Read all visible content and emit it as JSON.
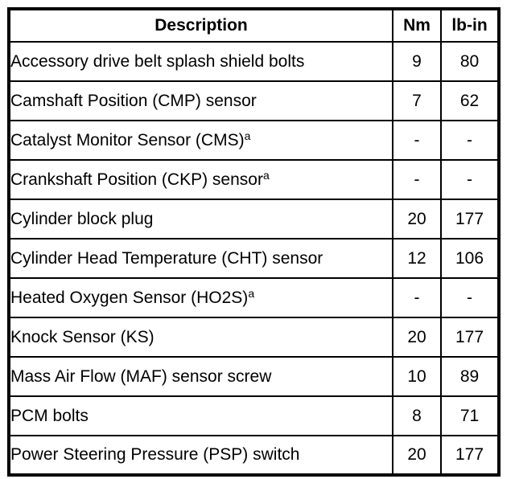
{
  "table": {
    "header": {
      "description": "Description",
      "nm": "Nm",
      "lbin": "lb-in"
    },
    "rows": [
      {
        "description": "Accessory drive belt splash shield bolts",
        "note": "",
        "nm": "9",
        "lbin": "80"
      },
      {
        "description": "Camshaft Position (CMP) sensor",
        "note": "",
        "nm": "7",
        "lbin": "62"
      },
      {
        "description": "Catalyst Monitor Sensor (CMS)",
        "note": "a",
        "nm": "-",
        "lbin": "-"
      },
      {
        "description": "Crankshaft Position (CKP) sensor",
        "note": "a",
        "nm": "-",
        "lbin": "-"
      },
      {
        "description": "Cylinder block plug",
        "note": "",
        "nm": "20",
        "lbin": "177"
      },
      {
        "description": "Cylinder Head Temperature (CHT) sensor",
        "note": "",
        "nm": "12",
        "lbin": "106"
      },
      {
        "description": "Heated Oxygen Sensor (HO2S)",
        "note": "a",
        "nm": "-",
        "lbin": "-"
      },
      {
        "description": "Knock Sensor (KS)",
        "note": "",
        "nm": "20",
        "lbin": "177"
      },
      {
        "description": "Mass Air Flow (MAF) sensor screw",
        "note": "",
        "nm": "10",
        "lbin": "89"
      },
      {
        "description": "PCM bolts",
        "note": "",
        "nm": "8",
        "lbin": "71"
      },
      {
        "description": "Power Steering Pressure (PSP) switch",
        "note": "",
        "nm": "20",
        "lbin": "177"
      }
    ],
    "colors": {
      "border": "#000000",
      "text": "#000000",
      "background": "#ffffff"
    }
  }
}
